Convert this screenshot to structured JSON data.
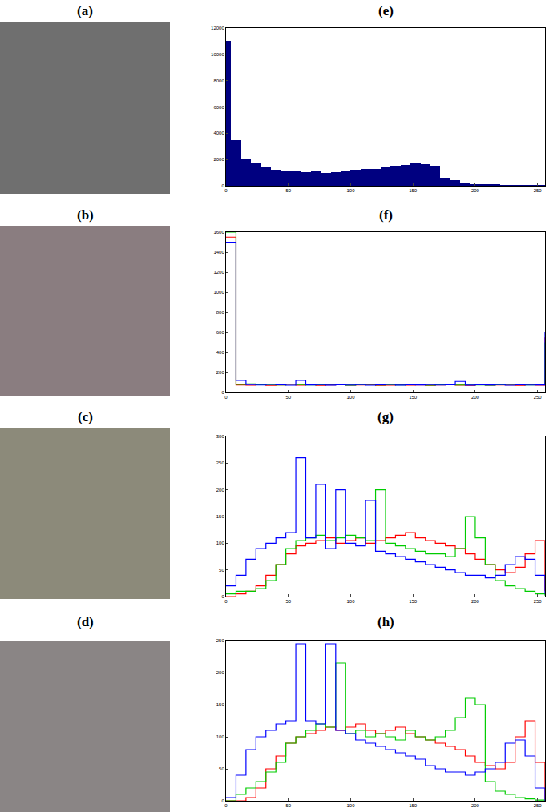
{
  "images": [
    {
      "title": "(a)"
    },
    {
      "title": "(b)"
    },
    {
      "title": "(c)"
    },
    {
      "title": "(d)"
    }
  ],
  "chart_data": [
    {
      "type": "bar",
      "title": "(e)",
      "color": "#000080",
      "x": [
        0,
        8,
        16,
        24,
        32,
        40,
        48,
        56,
        64,
        72,
        80,
        88,
        96,
        104,
        112,
        120,
        128,
        136,
        144,
        152,
        160,
        168,
        176,
        184,
        192,
        200,
        208,
        216,
        224,
        232,
        240,
        248,
        256
      ],
      "values": [
        11000,
        3500,
        2000,
        1700,
        1400,
        1200,
        1150,
        1100,
        1050,
        1100,
        1000,
        1050,
        1100,
        1200,
        1250,
        1300,
        1400,
        1500,
        1600,
        1700,
        1650,
        1500,
        600,
        400,
        250,
        150,
        100,
        70,
        50,
        40,
        30,
        20,
        10
      ],
      "xlim": [
        0,
        256
      ],
      "xticks": [
        0,
        50,
        100,
        150,
        200,
        250
      ],
      "ylim": [
        0,
        12000
      ],
      "yticks": [
        0,
        2000,
        4000,
        6000,
        8000,
        10000,
        12000
      ]
    },
    {
      "type": "line",
      "title": "(f)",
      "line_style": "step",
      "x": [
        0,
        8,
        16,
        24,
        32,
        40,
        48,
        56,
        64,
        72,
        80,
        88,
        96,
        104,
        112,
        120,
        128,
        136,
        144,
        152,
        160,
        168,
        176,
        184,
        192,
        200,
        208,
        216,
        224,
        232,
        240,
        248,
        256
      ],
      "series": [
        {
          "color": "#ff0000",
          "values": [
            1550,
            75,
            72,
            78,
            70,
            74,
            80,
            73,
            76,
            71,
            75,
            78,
            72,
            74,
            77,
            70,
            73,
            76,
            72,
            75,
            71,
            74,
            78,
            73,
            70,
            76,
            72,
            75,
            74,
            71,
            77,
            73,
            550
          ]
        },
        {
          "color": "#00cc00",
          "values": [
            1600,
            80,
            85,
            76,
            78,
            74,
            82,
            79,
            75,
            77,
            80,
            76,
            73,
            79,
            81,
            75,
            78,
            74,
            77,
            80,
            72,
            76,
            79,
            74,
            78,
            75,
            73,
            77,
            80,
            76,
            74,
            78,
            500
          ]
        },
        {
          "color": "#0000ff",
          "values": [
            1500,
            120,
            78,
            74,
            80,
            76,
            72,
            120,
            75,
            78,
            73,
            77,
            74,
            79,
            72,
            76,
            80,
            73,
            77,
            75,
            78,
            74,
            76,
            110,
            73,
            77,
            75,
            79,
            72,
            76,
            74,
            75,
            600
          ]
        }
      ],
      "xlim": [
        0,
        256
      ],
      "xticks": [
        0,
        50,
        100,
        150,
        200,
        250
      ],
      "ylim": [
        0,
        1600
      ],
      "yticks": [
        0,
        200,
        400,
        600,
        800,
        1000,
        1200,
        1400,
        1600
      ]
    },
    {
      "type": "line",
      "title": "(g)",
      "line_style": "step",
      "x": [
        0,
        8,
        16,
        24,
        32,
        40,
        48,
        56,
        64,
        72,
        80,
        88,
        96,
        104,
        112,
        120,
        128,
        136,
        144,
        152,
        160,
        168,
        176,
        184,
        192,
        200,
        208,
        216,
        224,
        232,
        240,
        248,
        256
      ],
      "series": [
        {
          "color": "#ff0000",
          "values": [
            0,
            5,
            10,
            20,
            40,
            60,
            80,
            95,
            100,
            105,
            110,
            100,
            105,
            110,
            100,
            105,
            110,
            115,
            120,
            110,
            105,
            100,
            95,
            90,
            80,
            70,
            60,
            50,
            45,
            55,
            80,
            105,
            10
          ]
        },
        {
          "color": "#00cc00",
          "values": [
            5,
            10,
            10,
            15,
            30,
            60,
            90,
            105,
            110,
            115,
            105,
            110,
            115,
            110,
            105,
            200,
            100,
            95,
            90,
            85,
            80,
            80,
            75,
            90,
            150,
            110,
            60,
            30,
            20,
            15,
            10,
            5,
            2
          ]
        },
        {
          "color": "#0000ff",
          "values": [
            20,
            40,
            70,
            90,
            100,
            110,
            120,
            260,
            110,
            210,
            90,
            200,
            100,
            95,
            180,
            85,
            80,
            75,
            70,
            65,
            60,
            55,
            50,
            45,
            40,
            40,
            35,
            40,
            60,
            75,
            70,
            40,
            5
          ]
        }
      ],
      "xlim": [
        0,
        256
      ],
      "xticks": [
        0,
        50,
        100,
        150,
        200,
        250
      ],
      "ylim": [
        0,
        300
      ],
      "yticks": [
        0,
        50,
        100,
        150,
        200,
        250,
        300
      ]
    },
    {
      "type": "line",
      "title": "(h)",
      "line_style": "step",
      "x": [
        0,
        8,
        16,
        24,
        32,
        40,
        48,
        56,
        64,
        72,
        80,
        88,
        96,
        104,
        112,
        120,
        128,
        136,
        144,
        152,
        160,
        168,
        176,
        184,
        192,
        200,
        208,
        216,
        224,
        232,
        240,
        248,
        256
      ],
      "series": [
        {
          "color": "#ff0000",
          "values": [
            0,
            0,
            5,
            20,
            50,
            70,
            90,
            100,
            105,
            110,
            115,
            110,
            115,
            120,
            110,
            105,
            110,
            115,
            105,
            100,
            95,
            90,
            85,
            80,
            70,
            60,
            55,
            50,
            60,
            100,
            125,
            60,
            0
          ]
        },
        {
          "color": "#00cc00",
          "values": [
            0,
            10,
            20,
            30,
            45,
            60,
            90,
            100,
            110,
            120,
            115,
            215,
            105,
            110,
            100,
            105,
            100,
            95,
            110,
            100,
            95,
            100,
            110,
            130,
            160,
            150,
            30,
            15,
            10,
            5,
            3,
            1,
            0
          ]
        },
        {
          "color": "#0000ff",
          "values": [
            5,
            40,
            80,
            100,
            110,
            120,
            125,
            245,
            125,
            120,
            245,
            110,
            105,
            95,
            90,
            85,
            80,
            75,
            70,
            65,
            55,
            50,
            45,
            45,
            40,
            45,
            50,
            60,
            90,
            95,
            70,
            20,
            0
          ]
        }
      ],
      "xlim": [
        0,
        256
      ],
      "xticks": [
        0,
        50,
        100,
        150,
        200,
        250
      ],
      "ylim": [
        0,
        250
      ],
      "yticks": [
        0,
        50,
        100,
        150,
        200,
        250
      ]
    }
  ]
}
